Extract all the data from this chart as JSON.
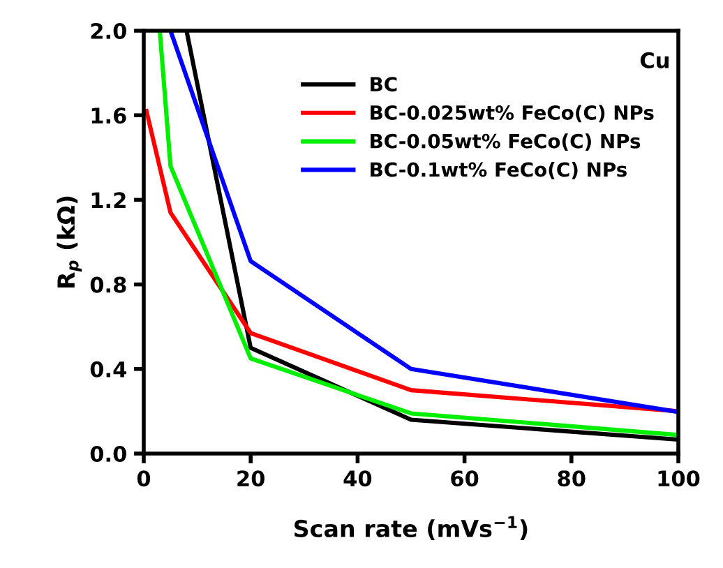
{
  "chart_data": {
    "type": "line",
    "xlabel": "Scan rate (mVs$^{−1}$)",
    "ylabel": "R$_{p}$ (kΩ)",
    "annotations": [
      "Cu"
    ],
    "xlim": [
      0,
      100
    ],
    "xticks": [
      0,
      20,
      40,
      60,
      80,
      100
    ],
    "ylim": [
      0,
      2.0
    ],
    "yticks": [
      {
        "value": 0,
        "label": "0.0"
      },
      {
        "value": 0.4,
        "label": "0.4"
      },
      {
        "value": 0.8,
        "label": "0.8"
      },
      {
        "value": 1.2,
        "label": "1.2"
      },
      {
        "value": 1.6,
        "label": "1.6"
      },
      {
        "value": 2.0,
        "label": "2.0"
      }
    ],
    "grid": false,
    "legend": "top right",
    "marker": "none",
    "line_style": "solid",
    "series": [
      {
        "name": "BC",
        "color": "#000000",
        "x": [
          8,
          20,
          50,
          100
        ],
        "values": [
          2.0,
          0.5,
          0.16,
          0.066
        ]
      },
      {
        "name": "BC-0.025wt% FeCo(C) NPs",
        "color": "#ff0000",
        "x": [
          0.5,
          5,
          20,
          50,
          100
        ],
        "values": [
          1.62,
          1.14,
          0.57,
          0.3,
          0.2
        ]
      },
      {
        "name": "BC-0.05wt% FeCo(C) NPs",
        "color": "#00ee00",
        "x": [
          3,
          5,
          20,
          50,
          100
        ],
        "values": [
          2.0,
          1.36,
          0.45,
          0.19,
          0.088
        ]
      },
      {
        "name": "BC-0.1wt% FeCo(C) NPs",
        "color": "#0000ff",
        "x": [
          5,
          20,
          50,
          100
        ],
        "values": [
          2.0,
          0.91,
          0.4,
          0.197
        ]
      }
    ]
  }
}
